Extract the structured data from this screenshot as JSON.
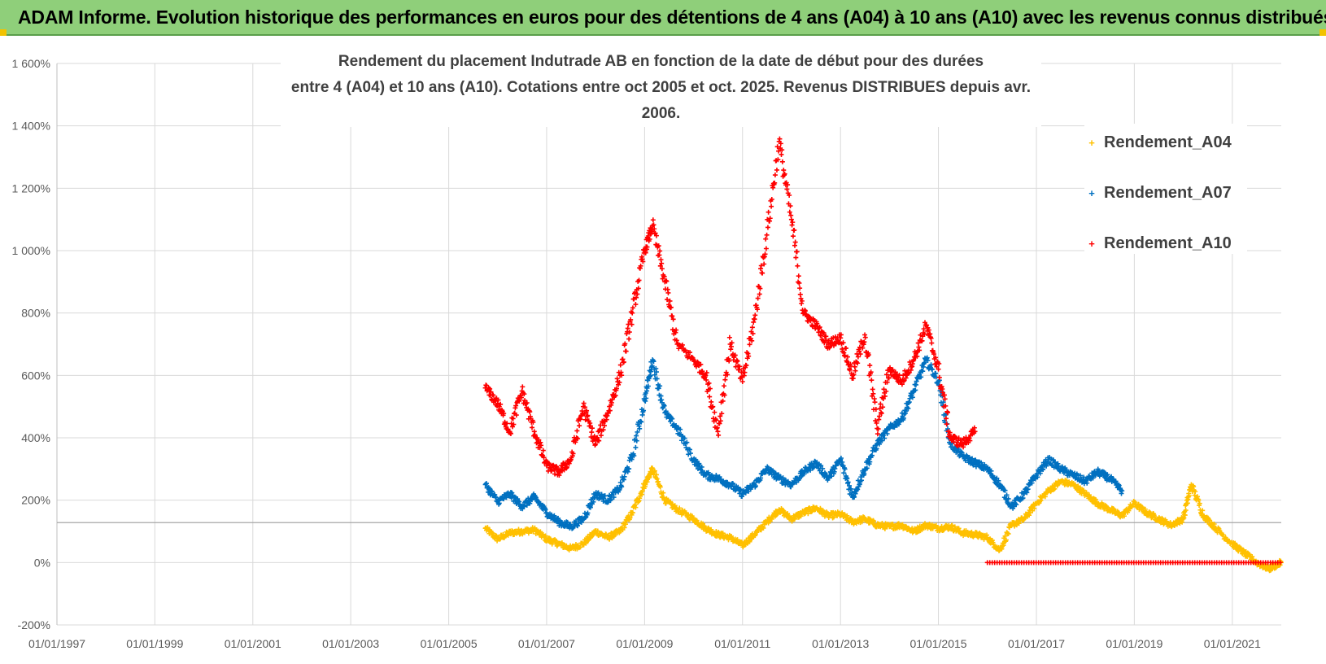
{
  "banner": {
    "title": "ADAM Informe. Evolution historique des performances en euros pour des détentions de 4 ans (A04) à 10 ans (A10) avec les revenus connus distribués"
  },
  "chart_data": {
    "type": "scatter",
    "title_line1": "Rendement du placement Indutrade AB en fonction de la date de début pour des durées",
    "title_line2": "entre 4 (A04) et 10 ans (A10).  Cotations entre oct 2005 et oct. 2025. Revenus DISTRIBUES depuis avr. 2006.",
    "xlabel": "",
    "ylabel": "",
    "x_ticks": [
      "01/01/1997",
      "01/01/1999",
      "01/01/2001",
      "01/01/2003",
      "01/01/2005",
      "01/01/2007",
      "01/01/2009",
      "01/01/2011",
      "01/01/2013",
      "01/01/2015",
      "01/01/2017",
      "01/01/2019",
      "01/01/2021"
    ],
    "xlim": [
      "1997-01-01",
      "2022-01-01"
    ],
    "y_ticks": [
      "-200%",
      "0%",
      "200%",
      "400%",
      "600%",
      "800%",
      "1 000%",
      "1 200%",
      "1 400%",
      "1 600%"
    ],
    "ylim": [
      -200,
      1600
    ],
    "reference_line_y": 128,
    "grid": true,
    "legend_position": "right",
    "marker": "+",
    "series": [
      {
        "name": "Rendement_A04",
        "color": "#ffc000",
        "points": [
          [
            "2005-10-01",
            110
          ],
          [
            "2006-01-01",
            75
          ],
          [
            "2006-04-01",
            95
          ],
          [
            "2006-07-01",
            100
          ],
          [
            "2006-10-01",
            105
          ],
          [
            "2007-01-01",
            75
          ],
          [
            "2007-04-01",
            60
          ],
          [
            "2007-07-01",
            45
          ],
          [
            "2007-10-01",
            60
          ],
          [
            "2008-01-01",
            100
          ],
          [
            "2008-04-01",
            80
          ],
          [
            "2008-07-01",
            100
          ],
          [
            "2008-10-01",
            160
          ],
          [
            "2009-01-01",
            250
          ],
          [
            "2009-03-01",
            300
          ],
          [
            "2009-06-01",
            200
          ],
          [
            "2009-09-01",
            170
          ],
          [
            "2010-01-01",
            140
          ],
          [
            "2010-04-01",
            110
          ],
          [
            "2010-07-01",
            90
          ],
          [
            "2010-10-01",
            80
          ],
          [
            "2011-01-01",
            55
          ],
          [
            "2011-04-01",
            90
          ],
          [
            "2011-07-01",
            130
          ],
          [
            "2011-10-01",
            170
          ],
          [
            "2012-01-01",
            140
          ],
          [
            "2012-04-01",
            160
          ],
          [
            "2012-07-01",
            175
          ],
          [
            "2012-10-01",
            150
          ],
          [
            "2013-01-01",
            155
          ],
          [
            "2013-04-01",
            130
          ],
          [
            "2013-07-01",
            140
          ],
          [
            "2013-10-01",
            120
          ],
          [
            "2014-01-01",
            115
          ],
          [
            "2014-04-01",
            120
          ],
          [
            "2014-07-01",
            100
          ],
          [
            "2014-10-01",
            120
          ],
          [
            "2015-01-01",
            110
          ],
          [
            "2015-04-01",
            115
          ],
          [
            "2015-07-01",
            95
          ],
          [
            "2015-10-01",
            90
          ],
          [
            "2016-01-01",
            80
          ],
          [
            "2016-04-01",
            40
          ],
          [
            "2016-07-01",
            120
          ],
          [
            "2016-10-01",
            140
          ],
          [
            "2017-01-01",
            190
          ],
          [
            "2017-04-01",
            230
          ],
          [
            "2017-07-01",
            260
          ],
          [
            "2017-10-01",
            250
          ],
          [
            "2018-01-01",
            220
          ],
          [
            "2018-04-01",
            190
          ],
          [
            "2018-07-01",
            170
          ],
          [
            "2018-10-01",
            150
          ],
          [
            "2019-01-01",
            190
          ],
          [
            "2019-04-01",
            160
          ],
          [
            "2019-07-01",
            140
          ],
          [
            "2019-10-01",
            120
          ],
          [
            "2020-01-01",
            140
          ],
          [
            "2020-03-01",
            250
          ],
          [
            "2020-06-01",
            150
          ],
          [
            "2020-09-01",
            110
          ],
          [
            "2021-01-01",
            60
          ],
          [
            "2021-04-01",
            30
          ],
          [
            "2021-07-01",
            0
          ],
          [
            "2021-10-01",
            -20
          ],
          [
            "2022-01-01",
            0
          ]
        ]
      },
      {
        "name": "Rendement_A07",
        "color": "#0070c0",
        "points": [
          [
            "2005-10-01",
            250
          ],
          [
            "2006-01-01",
            195
          ],
          [
            "2006-04-01",
            220
          ],
          [
            "2006-07-01",
            180
          ],
          [
            "2006-10-01",
            210
          ],
          [
            "2007-01-01",
            160
          ],
          [
            "2007-04-01",
            130
          ],
          [
            "2007-07-01",
            115
          ],
          [
            "2007-10-01",
            140
          ],
          [
            "2008-01-01",
            220
          ],
          [
            "2008-04-01",
            200
          ],
          [
            "2008-07-01",
            240
          ],
          [
            "2008-10-01",
            340
          ],
          [
            "2009-01-01",
            520
          ],
          [
            "2009-03-01",
            650
          ],
          [
            "2009-06-01",
            480
          ],
          [
            "2009-09-01",
            430
          ],
          [
            "2010-01-01",
            330
          ],
          [
            "2010-04-01",
            280
          ],
          [
            "2010-07-01",
            270
          ],
          [
            "2010-10-01",
            250
          ],
          [
            "2011-01-01",
            220
          ],
          [
            "2011-04-01",
            250
          ],
          [
            "2011-07-01",
            300
          ],
          [
            "2011-10-01",
            270
          ],
          [
            "2012-01-01",
            250
          ],
          [
            "2012-04-01",
            290
          ],
          [
            "2012-07-01",
            320
          ],
          [
            "2012-10-01",
            270
          ],
          [
            "2013-01-01",
            330
          ],
          [
            "2013-04-01",
            210
          ],
          [
            "2013-07-01",
            300
          ],
          [
            "2013-10-01",
            380
          ],
          [
            "2014-01-01",
            430
          ],
          [
            "2014-04-01",
            460
          ],
          [
            "2014-07-01",
            550
          ],
          [
            "2014-10-01",
            650
          ],
          [
            "2015-01-01",
            580
          ],
          [
            "2015-04-01",
            380
          ],
          [
            "2015-07-01",
            340
          ],
          [
            "2015-10-01",
            320
          ],
          [
            "2016-01-01",
            300
          ],
          [
            "2016-04-01",
            250
          ],
          [
            "2016-07-01",
            180
          ],
          [
            "2016-10-01",
            220
          ],
          [
            "2017-01-01",
            280
          ],
          [
            "2017-04-01",
            330
          ],
          [
            "2017-07-01",
            300
          ],
          [
            "2017-10-01",
            280
          ],
          [
            "2018-01-01",
            260
          ],
          [
            "2018-04-01",
            290
          ],
          [
            "2018-07-01",
            270
          ],
          [
            "2018-10-01",
            230
          ]
        ]
      },
      {
        "name": "Rendement_A10",
        "color": "#ff0000",
        "points": [
          [
            "2005-10-01",
            560
          ],
          [
            "2006-01-01",
            510
          ],
          [
            "2006-04-01",
            420
          ],
          [
            "2006-07-01",
            550
          ],
          [
            "2006-10-01",
            420
          ],
          [
            "2007-01-01",
            310
          ],
          [
            "2007-04-01",
            290
          ],
          [
            "2007-07-01",
            330
          ],
          [
            "2007-10-01",
            500
          ],
          [
            "2008-01-01",
            380
          ],
          [
            "2008-04-01",
            480
          ],
          [
            "2008-07-01",
            600
          ],
          [
            "2008-10-01",
            800
          ],
          [
            "2009-01-01",
            1000
          ],
          [
            "2009-03-01",
            1080
          ],
          [
            "2009-06-01",
            900
          ],
          [
            "2009-09-01",
            700
          ],
          [
            "2010-01-01",
            650
          ],
          [
            "2010-04-01",
            600
          ],
          [
            "2010-07-01",
            420
          ],
          [
            "2010-10-01",
            700
          ],
          [
            "2011-01-01",
            580
          ],
          [
            "2011-04-01",
            780
          ],
          [
            "2011-07-01",
            1050
          ],
          [
            "2011-10-01",
            1350
          ],
          [
            "2012-01-01",
            1100
          ],
          [
            "2012-04-01",
            800
          ],
          [
            "2012-07-01",
            760
          ],
          [
            "2012-10-01",
            700
          ],
          [
            "2013-01-01",
            720
          ],
          [
            "2013-04-01",
            600
          ],
          [
            "2013-07-01",
            730
          ],
          [
            "2013-10-01",
            430
          ],
          [
            "2014-01-01",
            620
          ],
          [
            "2014-04-01",
            580
          ],
          [
            "2014-07-01",
            650
          ],
          [
            "2014-10-01",
            760
          ],
          [
            "2015-01-01",
            620
          ],
          [
            "2015-04-01",
            400
          ],
          [
            "2015-07-01",
            380
          ],
          [
            "2015-10-01",
            420
          ]
        ]
      }
    ],
    "zero_band": {
      "color": "#ff0000",
      "y": 0,
      "x_start": "2016-01-01",
      "x_end": "2022-01-01"
    }
  }
}
